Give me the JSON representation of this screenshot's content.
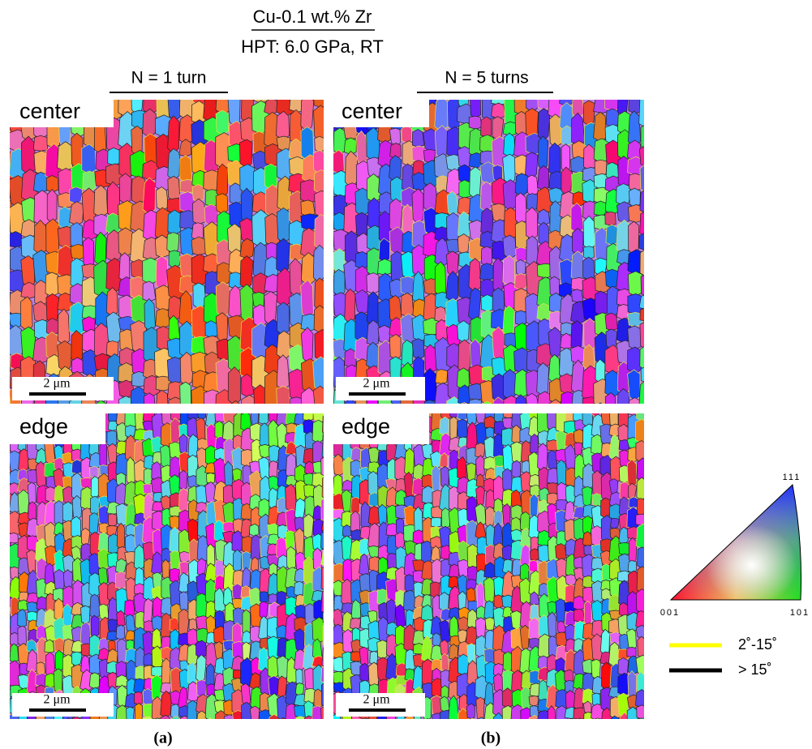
{
  "header": {
    "title": "Cu-0.1 wt.% Zr",
    "subtitle": "HPT: 6.0 GPa, RT"
  },
  "columns": [
    {
      "label": "N = 1 turn",
      "caption": "(a)",
      "panels": [
        {
          "label": "center",
          "scale_bar": "2 μm"
        },
        {
          "label": "edge",
          "scale_bar": "2 μm"
        }
      ]
    },
    {
      "label": "N = 5 turns",
      "caption": "(b)",
      "panels": [
        {
          "label": "center",
          "scale_bar": "2 μm"
        },
        {
          "label": "edge",
          "scale_bar": "2 μm"
        }
      ]
    }
  ],
  "ipf_legend": {
    "corners": [
      "111",
      "001",
      "101"
    ]
  },
  "boundary_legend": [
    {
      "label": "2˚-15˚",
      "color": "#ffff00"
    },
    {
      "label": "> 15˚",
      "color": "#000000"
    }
  ]
}
